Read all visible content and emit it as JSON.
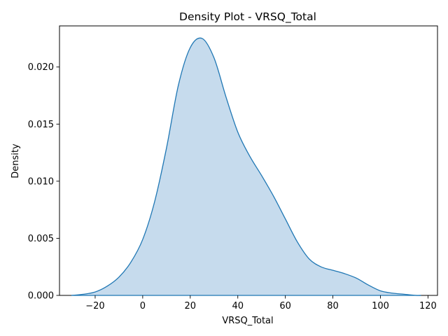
{
  "chart_data": {
    "type": "area",
    "title": "Density Plot - VRSQ_Total",
    "xlabel": "VRSQ_Total",
    "ylabel": "Density",
    "xlim": [
      -35,
      124
    ],
    "ylim": [
      0,
      0.0236
    ],
    "x_ticks": [
      -20,
      0,
      20,
      40,
      60,
      80,
      100,
      120
    ],
    "x_tick_labels": [
      "−20",
      "0",
      "20",
      "40",
      "60",
      "80",
      "100",
      "120"
    ],
    "y_ticks": [
      0.0,
      0.005,
      0.01,
      0.015,
      0.02
    ],
    "y_tick_labels": [
      "0.000",
      "0.005",
      "0.010",
      "0.015",
      "0.020"
    ],
    "grid": false,
    "colors": {
      "line": "#1f77b4",
      "fill": "#c6dbed"
    },
    "series": [
      {
        "x": [
          -30,
          -25,
          -20,
          -15,
          -10,
          -5,
          0,
          5,
          10,
          15,
          20,
          25,
          30,
          35,
          40,
          45,
          50,
          55,
          60,
          65,
          70,
          75,
          80,
          85,
          90,
          95,
          100,
          105,
          110,
          115,
          117
        ],
        "values": [
          0.0,
          0.0001,
          0.0003,
          0.0008,
          0.0016,
          0.0029,
          0.0049,
          0.0082,
          0.0129,
          0.0184,
          0.0217,
          0.0225,
          0.0208,
          0.0174,
          0.0143,
          0.0122,
          0.0105,
          0.0087,
          0.0067,
          0.0047,
          0.0032,
          0.0025,
          0.0022,
          0.0019,
          0.0015,
          0.0009,
          0.0004,
          0.0002,
          0.0001,
          0.0,
          0.0
        ]
      }
    ]
  }
}
